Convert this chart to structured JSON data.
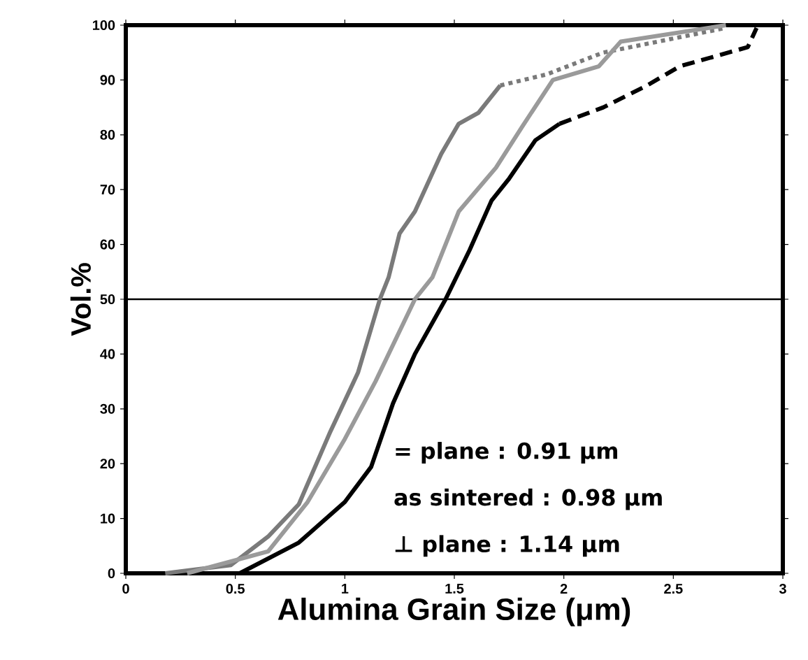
{
  "chart_data": {
    "type": "line",
    "xlabel": "Alumina Grain Size (μm)",
    "ylabel": "Vol.%",
    "xlim": [
      0,
      3
    ],
    "ylim": [
      0,
      100
    ],
    "xticks": [
      0,
      0.5,
      1,
      1.5,
      2,
      2.5,
      3
    ],
    "yticks": [
      0,
      10,
      20,
      30,
      40,
      50,
      60,
      70,
      80,
      90,
      100
    ],
    "grid": false,
    "series": [
      {
        "color": "#7a7a7a",
        "line_style": "solid",
        "x": [
          0.18,
          0.48,
          0.65,
          0.79,
          0.93,
          1.06,
          1.16,
          1.2,
          1.25,
          1.32,
          1.44,
          1.52,
          1.61,
          1.71
        ],
        "values": [
          0,
          1.5,
          6.7,
          12.6,
          25.5,
          36.6,
          50,
          54,
          62,
          66,
          76.5,
          82,
          84,
          89
        ]
      },
      {
        "color": "#7a7a7a",
        "line_style": "dotted",
        "x": [
          1.71,
          1.92,
          2.18,
          2.43,
          2.74
        ],
        "values": [
          89,
          91,
          95,
          97,
          99.5
        ]
      },
      {
        "color": "#9a9a9a",
        "line_style": "solid",
        "x": [
          0.28,
          0.65,
          0.83,
          1.0,
          1.14,
          1.32,
          1.4,
          1.52,
          1.69,
          1.81,
          1.95,
          2.16,
          2.26,
          2.74
        ],
        "values": [
          0,
          4,
          13,
          24.5,
          35,
          50,
          54,
          66,
          74,
          81.5,
          90,
          92.5,
          97,
          100
        ]
      },
      {
        "color": "#000000",
        "line_style": "solid",
        "x": [
          0.52,
          0.79,
          1.0,
          1.12,
          1.22,
          1.32,
          1.46,
          1.57,
          1.67,
          1.75,
          1.87,
          1.98
        ],
        "values": [
          0,
          5.6,
          13,
          19.4,
          31,
          40,
          50,
          59,
          68,
          72,
          79,
          82
        ]
      },
      {
        "color": "#000000",
        "line_style": "dashed",
        "x": [
          1.98,
          2.18,
          2.38,
          2.53,
          2.84,
          2.88
        ],
        "values": [
          82,
          85,
          89,
          92.5,
          96,
          99.5
        ]
      }
    ],
    "ref_lines": [
      {
        "axis": "y",
        "value": 50,
        "color": "#000000"
      }
    ],
    "annotations": [
      "= plane : 0.91 μm",
      "as sintered : 0.98 μm",
      "⊥ plane : 1.14 μm"
    ]
  }
}
